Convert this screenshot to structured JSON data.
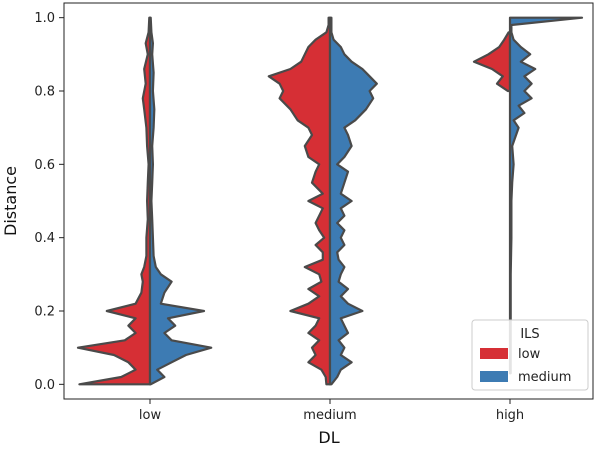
{
  "chart_data": {
    "type": "violin-split",
    "title": "",
    "xlabel": "DL",
    "ylabel": "Distance",
    "categories": [
      "low",
      "medium",
      "high"
    ],
    "ylim": [
      -0.04,
      1.04
    ],
    "yticks": [
      0.0,
      0.2,
      0.4,
      0.6,
      0.8,
      1.0
    ],
    "ytick_labels": [
      "0.0",
      "0.2",
      "0.4",
      "0.6",
      "0.8",
      "1.0"
    ],
    "grid": false,
    "legend": {
      "title": "ILS",
      "placement": "bottom-right",
      "entries": [
        {
          "label": "low",
          "color": "#d62f35"
        },
        {
          "label": "medium",
          "color": "#3d7bb3"
        }
      ]
    },
    "series": [
      {
        "name": "low",
        "side": "left",
        "color": "#d62f35",
        "density_profiles": {
          "low": [
            [
              0,
              0.98
            ],
            [
              0.02,
              0.4
            ],
            [
              0.04,
              0.2
            ],
            [
              0.06,
              0.3
            ],
            [
              0.08,
              0.5
            ],
            [
              0.1,
              1.0
            ],
            [
              0.12,
              0.35
            ],
            [
              0.14,
              0.2
            ],
            [
              0.16,
              0.3
            ],
            [
              0.18,
              0.2
            ],
            [
              0.2,
              0.6
            ],
            [
              0.22,
              0.2
            ],
            [
              0.25,
              0.12
            ],
            [
              0.28,
              0.1
            ],
            [
              0.3,
              0.12
            ],
            [
              0.32,
              0.08
            ],
            [
              0.35,
              0.05
            ],
            [
              0.4,
              0.05
            ],
            [
              0.45,
              0.03
            ],
            [
              0.5,
              0.04
            ],
            [
              0.55,
              0.03
            ],
            [
              0.6,
              0.02
            ],
            [
              0.65,
              0.04
            ],
            [
              0.7,
              0.05
            ],
            [
              0.75,
              0.08
            ],
            [
              0.78,
              0.1
            ],
            [
              0.82,
              0.06
            ],
            [
              0.86,
              0.08
            ],
            [
              0.9,
              0.03
            ],
            [
              0.93,
              0.06
            ],
            [
              0.96,
              0.02
            ],
            [
              1.0,
              0.01
            ]
          ],
          "medium": [
            [
              0,
              0.05
            ],
            [
              0.02,
              0.06
            ],
            [
              0.04,
              0.12
            ],
            [
              0.06,
              0.3
            ],
            [
              0.08,
              0.2
            ],
            [
              0.1,
              0.25
            ],
            [
              0.12,
              0.15
            ],
            [
              0.14,
              0.3
            ],
            [
              0.16,
              0.2
            ],
            [
              0.18,
              0.15
            ],
            [
              0.2,
              0.55
            ],
            [
              0.22,
              0.3
            ],
            [
              0.24,
              0.15
            ],
            [
              0.26,
              0.3
            ],
            [
              0.28,
              0.12
            ],
            [
              0.3,
              0.15
            ],
            [
              0.32,
              0.35
            ],
            [
              0.34,
              0.1
            ],
            [
              0.36,
              0.1
            ],
            [
              0.38,
              0.2
            ],
            [
              0.4,
              0.08
            ],
            [
              0.42,
              0.15
            ],
            [
              0.44,
              0.2
            ],
            [
              0.46,
              0.15
            ],
            [
              0.48,
              0.1
            ],
            [
              0.5,
              0.3
            ],
            [
              0.52,
              0.1
            ],
            [
              0.55,
              0.25
            ],
            [
              0.58,
              0.2
            ],
            [
              0.6,
              0.15
            ],
            [
              0.62,
              0.3
            ],
            [
              0.65,
              0.35
            ],
            [
              0.68,
              0.25
            ],
            [
              0.7,
              0.3
            ],
            [
              0.72,
              0.45
            ],
            [
              0.75,
              0.55
            ],
            [
              0.78,
              0.7
            ],
            [
              0.8,
              0.65
            ],
            [
              0.82,
              0.7
            ],
            [
              0.84,
              0.85
            ],
            [
              0.86,
              0.55
            ],
            [
              0.88,
              0.4
            ],
            [
              0.9,
              0.35
            ],
            [
              0.92,
              0.3
            ],
            [
              0.94,
              0.2
            ],
            [
              0.96,
              0.05
            ],
            [
              0.98,
              0.02
            ],
            [
              1.0,
              0.02
            ]
          ],
          "high": [
            [
              0.8,
              0.03
            ],
            [
              0.82,
              0.18
            ],
            [
              0.84,
              0.1
            ],
            [
              0.86,
              0.25
            ],
            [
              0.88,
              0.5
            ],
            [
              0.9,
              0.3
            ],
            [
              0.92,
              0.15
            ],
            [
              0.94,
              0.08
            ],
            [
              0.96,
              0.02
            ]
          ]
        }
      },
      {
        "name": "medium",
        "side": "right",
        "color": "#3d7bb3",
        "density_profiles": {
          "low": [
            [
              0,
              0.01
            ],
            [
              0.02,
              0.2
            ],
            [
              0.04,
              0.1
            ],
            [
              0.06,
              0.3
            ],
            [
              0.08,
              0.5
            ],
            [
              0.1,
              0.85
            ],
            [
              0.12,
              0.3
            ],
            [
              0.14,
              0.2
            ],
            [
              0.16,
              0.35
            ],
            [
              0.18,
              0.25
            ],
            [
              0.2,
              0.75
            ],
            [
              0.22,
              0.15
            ],
            [
              0.25,
              0.2
            ],
            [
              0.28,
              0.3
            ],
            [
              0.3,
              0.15
            ],
            [
              0.32,
              0.08
            ],
            [
              0.35,
              0.05
            ],
            [
              0.4,
              0.04
            ],
            [
              0.45,
              0.03
            ],
            [
              0.5,
              0.02
            ],
            [
              0.55,
              0.03
            ],
            [
              0.6,
              0.04
            ],
            [
              0.65,
              0.03
            ],
            [
              0.7,
              0.05
            ],
            [
              0.75,
              0.06
            ],
            [
              0.8,
              0.04
            ],
            [
              0.85,
              0.05
            ],
            [
              0.9,
              0.03
            ],
            [
              0.93,
              0.04
            ],
            [
              0.96,
              0.02
            ],
            [
              1.0,
              0.01
            ]
          ],
          "medium": [
            [
              0,
              0.02
            ],
            [
              0.02,
              0.1
            ],
            [
              0.04,
              0.15
            ],
            [
              0.06,
              0.3
            ],
            [
              0.08,
              0.15
            ],
            [
              0.1,
              0.2
            ],
            [
              0.12,
              0.12
            ],
            [
              0.14,
              0.25
            ],
            [
              0.16,
              0.2
            ],
            [
              0.18,
              0.15
            ],
            [
              0.2,
              0.45
            ],
            [
              0.22,
              0.25
            ],
            [
              0.24,
              0.15
            ],
            [
              0.26,
              0.25
            ],
            [
              0.28,
              0.12
            ],
            [
              0.3,
              0.15
            ],
            [
              0.32,
              0.2
            ],
            [
              0.34,
              0.12
            ],
            [
              0.36,
              0.1
            ],
            [
              0.38,
              0.2
            ],
            [
              0.4,
              0.15
            ],
            [
              0.42,
              0.2
            ],
            [
              0.44,
              0.1
            ],
            [
              0.46,
              0.2
            ],
            [
              0.48,
              0.15
            ],
            [
              0.5,
              0.3
            ],
            [
              0.52,
              0.15
            ],
            [
              0.55,
              0.2
            ],
            [
              0.58,
              0.25
            ],
            [
              0.6,
              0.1
            ],
            [
              0.62,
              0.2
            ],
            [
              0.65,
              0.3
            ],
            [
              0.68,
              0.25
            ],
            [
              0.7,
              0.2
            ],
            [
              0.72,
              0.35
            ],
            [
              0.75,
              0.5
            ],
            [
              0.78,
              0.6
            ],
            [
              0.8,
              0.55
            ],
            [
              0.82,
              0.65
            ],
            [
              0.84,
              0.55
            ],
            [
              0.86,
              0.45
            ],
            [
              0.88,
              0.3
            ],
            [
              0.9,
              0.2
            ],
            [
              0.92,
              0.15
            ],
            [
              0.94,
              0.05
            ],
            [
              0.96,
              0.02
            ],
            [
              0.98,
              0.02
            ],
            [
              1.0,
              0.02
            ]
          ],
          "high": [
            [
              0.03,
              0.01
            ],
            [
              0.1,
              0.01
            ],
            [
              0.2,
              0.01
            ],
            [
              0.3,
              0.01
            ],
            [
              0.4,
              0.02
            ],
            [
              0.5,
              0.02
            ],
            [
              0.55,
              0.03
            ],
            [
              0.6,
              0.05
            ],
            [
              0.65,
              0.03
            ],
            [
              0.7,
              0.12
            ],
            [
              0.72,
              0.05
            ],
            [
              0.74,
              0.2
            ],
            [
              0.76,
              0.12
            ],
            [
              0.78,
              0.3
            ],
            [
              0.8,
              0.2
            ],
            [
              0.82,
              0.3
            ],
            [
              0.84,
              0.2
            ],
            [
              0.86,
              0.35
            ],
            [
              0.88,
              0.15
            ],
            [
              0.9,
              0.28
            ],
            [
              0.92,
              0.15
            ],
            [
              0.94,
              0.05
            ],
            [
              0.96,
              0.02
            ],
            [
              0.98,
              0.02
            ],
            [
              1.0,
              1.0
            ]
          ]
        }
      }
    ]
  }
}
